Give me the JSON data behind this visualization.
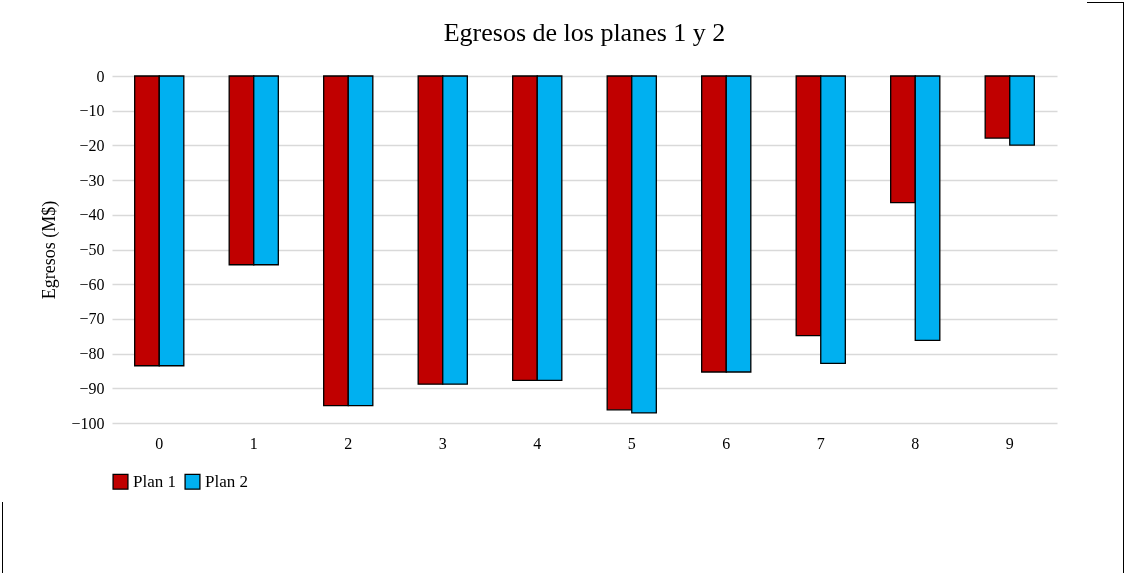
{
  "chart_data": {
    "type": "bar",
    "title": "Egresos de los planes 1 y 2",
    "ylabel": "Egresos (M$)",
    "categories": [
      "0",
      "1",
      "2",
      "3",
      "4",
      "5",
      "6",
      "7",
      "8",
      "9"
    ],
    "series": [
      {
        "name": "Plan 1",
        "color": "#c00000",
        "values": [
          -83.5,
          -54.4,
          -95,
          -88.8,
          -87.7,
          -96.2,
          -85.3,
          -74.8,
          -36.5,
          -17.9
        ]
      },
      {
        "name": "Plan 2",
        "color": "#00b0f0",
        "values": [
          -83.5,
          -54.4,
          -95,
          -88.8,
          -87.7,
          -97.1,
          -85.3,
          -82.8,
          -76.2,
          -19.9
        ]
      }
    ],
    "ylim": [
      -100,
      0
    ],
    "yticks": [
      0,
      -10,
      -20,
      -30,
      -40,
      -50,
      -60,
      -70,
      -80,
      -90,
      -100
    ],
    "grid": "y",
    "legend": "bottom"
  }
}
